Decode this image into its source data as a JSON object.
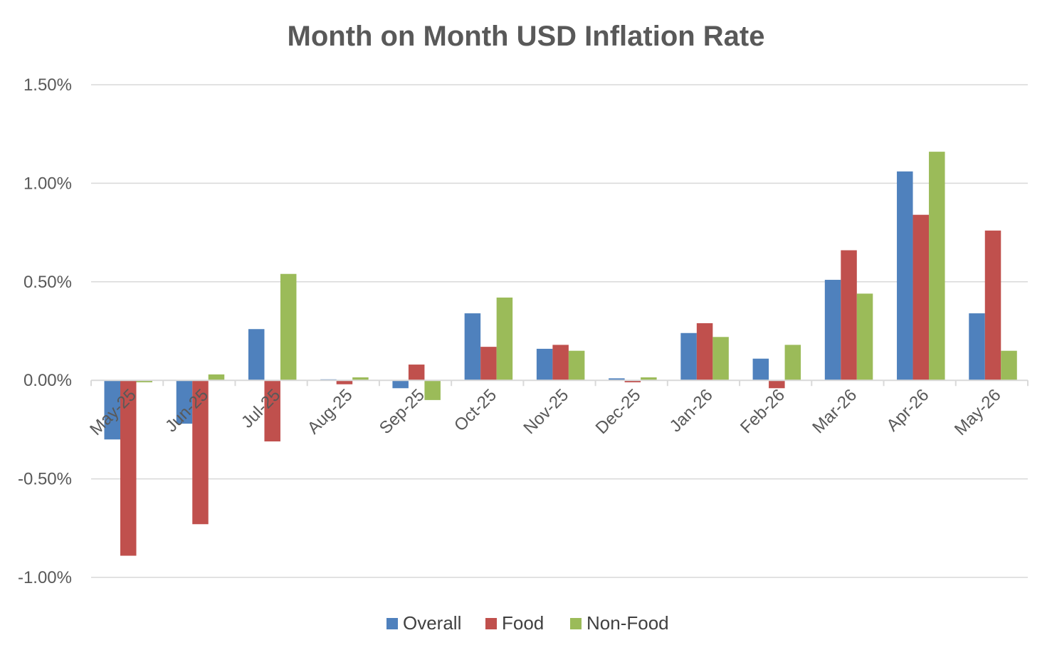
{
  "chart_data": {
    "type": "bar",
    "title": "Month on Month USD Inflation Rate",
    "xlabel": "",
    "ylabel": "",
    "categories": [
      "May-25",
      "Jun-25",
      "Jul-25",
      "Aug-25",
      "Sep-25",
      "Oct-25",
      "Nov-25",
      "Dec-25",
      "Jan-26",
      "Feb-26",
      "Mar-26",
      "Apr-26",
      "May-26"
    ],
    "series": [
      {
        "name": "Overall",
        "color": "#4F81BD",
        "values": [
          -0.3,
          -0.22,
          0.26,
          0.005,
          -0.04,
          0.34,
          0.16,
          0.01,
          0.24,
          0.11,
          0.51,
          1.06,
          0.34
        ]
      },
      {
        "name": "Food",
        "color": "#C0504D",
        "values": [
          -0.89,
          -0.73,
          -0.31,
          -0.02,
          0.08,
          0.17,
          0.18,
          -0.01,
          0.29,
          -0.04,
          0.66,
          0.84,
          0.76
        ]
      },
      {
        "name": "Non-Food",
        "color": "#9BBB59",
        "values": [
          -0.01,
          0.03,
          0.54,
          0.015,
          -0.1,
          0.42,
          0.15,
          0.015,
          0.22,
          0.18,
          0.44,
          1.16,
          0.15
        ]
      }
    ],
    "ylim": [
      -1.0,
      1.5
    ],
    "yticks": [
      "-1.00%",
      "-0.50%",
      "0.00%",
      "0.50%",
      "1.00%",
      "1.50%"
    ],
    "ytick_values": [
      -1.0,
      -0.5,
      0.0,
      0.5,
      1.0,
      1.5
    ],
    "y_unit": "%",
    "grid": true,
    "legend_position": "bottom",
    "gridline_color": "#D9D9D9",
    "text_color": "#595959"
  }
}
